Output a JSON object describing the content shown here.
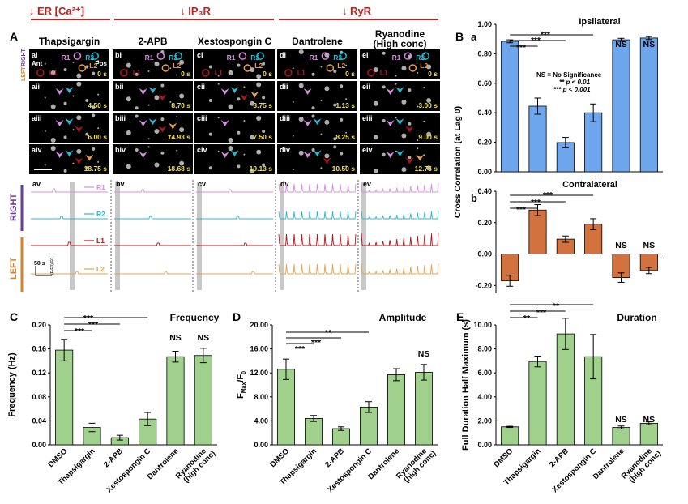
{
  "header": {
    "groups": [
      {
        "arrow": "↓",
        "label": "ER [Ca²⁺]"
      },
      {
        "arrow": "↓",
        "label": "IP₃R"
      },
      {
        "arrow": "↓",
        "label": "RyR"
      }
    ],
    "colors": {
      "red": "#c0201c"
    }
  },
  "panelA": {
    "letter": "A",
    "columns": [
      "Thapsigargin",
      "2-APB",
      "Xestospongin C",
      "Dantrolene",
      "Ryanodine\n(High conc)"
    ],
    "side_labels": {
      "right": "RIGHT",
      "left": "LEFT",
      "ant": "Ant",
      "pos": "Pos"
    },
    "roi_labels": [
      "R1",
      "R2",
      "L1",
      "L2"
    ],
    "rows": [
      {
        "ids": [
          "ai",
          "bi",
          "ci",
          "di",
          "ei"
        ],
        "times": [
          "0 s",
          "0 s",
          "0 s",
          "0 s",
          "0 s"
        ]
      },
      {
        "ids": [
          "aii",
          "bii",
          "cii",
          "dii",
          "eii"
        ],
        "times": [
          "4.50 s",
          "8.70 s",
          "3.75 s",
          "1.13 s",
          "3.00 s"
        ]
      },
      {
        "ids": [
          "aiii",
          "biii",
          "ciii",
          "diii",
          "eiii"
        ],
        "times": [
          "6.00 s",
          "14.93 s",
          "7.50 s",
          "8.25 s",
          "9.00 s"
        ]
      },
      {
        "ids": [
          "aiv",
          "biv",
          "civ",
          "div",
          "eiv"
        ],
        "times": [
          "18.75 s",
          "18.68 s",
          "19.13 s",
          "10.50 s",
          "12.75 s"
        ]
      }
    ],
    "trace_ids": [
      "av",
      "bv",
      "cv",
      "dv",
      "ev"
    ],
    "trace_labels": [
      "R1",
      "R2",
      "L1",
      "L2"
    ],
    "trace_colors": [
      "#d98be0",
      "#27b9d3",
      "#b3141c",
      "#e8a04a"
    ],
    "trace_side": {
      "right": "RIGHT",
      "left": "LEFT"
    },
    "scalebar": {
      "time": "50 s",
      "amp": "(F-F0)/F0"
    },
    "side_colors": {
      "right": "#6a3d9a",
      "left": "#d4832a"
    }
  },
  "panelB": {
    "letter": "B",
    "a": {
      "letter": "a",
      "title": "Ipsilateral"
    },
    "b": {
      "letter": "b",
      "title": "Contralateral"
    },
    "ylabel": "Cross Correlation (at Lag 0)",
    "legend": [
      "NS = No Significance",
      "** p < 0.01",
      "*** p < 0.001"
    ],
    "sig_top": [
      "***",
      "***",
      "***"
    ],
    "sig_bot": [
      "***",
      "***",
      "***"
    ],
    "ns_labels": [
      "NS",
      "NS"
    ]
  },
  "panelC": {
    "letter": "C",
    "title": "Frequency",
    "ylabel": "Frequency (Hz)",
    "sig": [
      "***",
      "***",
      "***"
    ],
    "ns": [
      "NS",
      "NS"
    ]
  },
  "panelD": {
    "letter": "D",
    "title": "Amplitude",
    "ylabel": "F_Max/F_0",
    "sig": [
      "***",
      "***",
      "**"
    ],
    "ns": [
      "NS"
    ]
  },
  "panelE": {
    "letter": "E",
    "title": "Duration",
    "ylabel": "Full Duration Half Maximum (s)",
    "sig": [
      "**",
      "***",
      "**"
    ],
    "ns": [
      "NS",
      "NS"
    ]
  },
  "chart_data": [
    {
      "type": "bar",
      "title": "Ipsilateral",
      "ylabel": "Cross Correlation (at Lag 0)",
      "categories": [
        "DMSO",
        "Thapsigargin",
        "2-APB",
        "Xestospongin C",
        "Dantrolene",
        "Ryanodine (high conc)"
      ],
      "values": [
        0.885,
        0.445,
        0.198,
        0.4,
        0.895,
        0.907
      ],
      "errors": [
        0.01,
        0.055,
        0.035,
        0.06,
        0.01,
        0.01
      ],
      "ylim": [
        0,
        1.0
      ],
      "yticks": [
        "0.00",
        "0.20",
        "0.40",
        "0.60",
        "0.80",
        "1.00"
      ],
      "color": "#6ea6ee"
    },
    {
      "type": "bar",
      "title": "Contralateral",
      "ylabel": "Cross Correlation (at Lag 0)",
      "categories": [
        "DMSO",
        "Thapsigargin",
        "2-APB",
        "Xestospongin C",
        "Dantrolene",
        "Ryanodine (high conc)"
      ],
      "values": [
        -0.17,
        0.28,
        0.095,
        0.19,
        -0.15,
        -0.105
      ],
      "errors": [
        0.035,
        0.035,
        0.02,
        0.035,
        0.03,
        0.02
      ],
      "ylim": [
        -0.25,
        0.4
      ],
      "yticks": [
        "-0.20",
        "0.00",
        "0.20",
        "0.40"
      ],
      "color": "#d2733f"
    },
    {
      "type": "bar",
      "title": "Frequency",
      "ylabel": "Frequency (Hz)",
      "categories": [
        "DMSO",
        "Thapsigargin",
        "2-APB",
        "Xestospongin C",
        "Dantrolene",
        "Ryanodine (high conc)"
      ],
      "xticklabels": [
        "DMSO",
        "Thapsigargin",
        "2-APB",
        "Xestospongin C",
        "Dantrolene",
        "Ryanodine\n(high conc)"
      ],
      "values": [
        0.158,
        0.029,
        0.012,
        0.043,
        0.147,
        0.149
      ],
      "errors": [
        0.018,
        0.007,
        0.004,
        0.011,
        0.009,
        0.012
      ],
      "ylim": [
        0,
        0.2
      ],
      "yticks": [
        "0.00",
        "0.04",
        "0.08",
        "0.12",
        "0.16",
        "0.20"
      ],
      "color": "#9fd08c"
    },
    {
      "type": "bar",
      "title": "Amplitude",
      "ylabel": "F_Max/F_0",
      "categories": [
        "DMSO",
        "Thapsigargin",
        "2-APB",
        "Xestospongin C",
        "Dantrolene",
        "Ryanodine (high conc)"
      ],
      "xticklabels": [
        "DMSO",
        "Thapsigargin",
        "2-APB",
        "Xestospongin C",
        "Dantrolene",
        "Ryanodine\n(high conc)"
      ],
      "values": [
        12.6,
        4.4,
        2.7,
        6.3,
        11.7,
        12.1
      ],
      "errors": [
        1.7,
        0.5,
        0.3,
        0.9,
        1.0,
        1.3
      ],
      "ylim": [
        0,
        20
      ],
      "yticks": [
        "0.00",
        "4.00",
        "8.00",
        "12.00",
        "16.00",
        "20.00"
      ],
      "color": "#9fd08c"
    },
    {
      "type": "bar",
      "title": "Duration",
      "ylabel": "Full Duration Half Maximum (s)",
      "categories": [
        "DMSO",
        "Thapsigargin",
        "2-APB",
        "Xestospongin C",
        "Dantrolene",
        "Ryanodine (high conc)"
      ],
      "xticklabels": [
        "DMSO",
        "Thapsigargin",
        "2-APB",
        "Xestospongin C",
        "Dantrolene",
        "Ryanodine\n(high conc)"
      ],
      "values": [
        1.5,
        6.95,
        9.25,
        7.35,
        1.45,
        1.8
      ],
      "errors": [
        0.05,
        0.45,
        1.3,
        1.85,
        0.12,
        0.12
      ],
      "ylim": [
        0,
        10
      ],
      "yticks": [
        "0.00",
        "2.00",
        "4.00",
        "6.00",
        "8.00",
        "10.00"
      ],
      "color": "#9fd08c"
    }
  ]
}
